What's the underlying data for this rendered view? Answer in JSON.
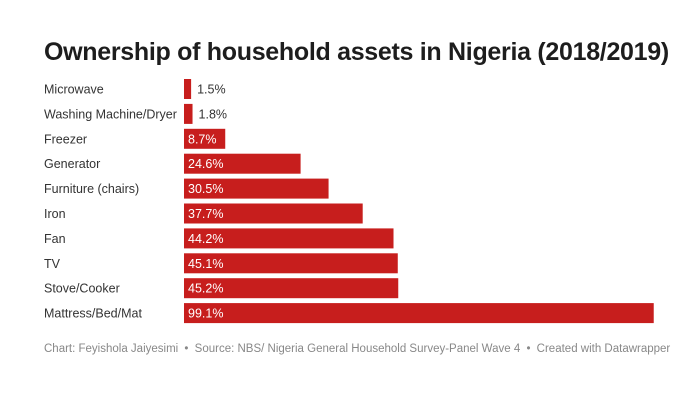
{
  "chart_data": {
    "type": "bar",
    "orientation": "horizontal",
    "title": "Ownership of household assets in Nigeria (2018/2019)",
    "categories": [
      "Microwave",
      "Washing Machine/Dryer",
      "Freezer",
      "Generator",
      "Furniture (chairs)",
      "Iron",
      "Fan",
      "TV",
      "Stove/Cooker",
      "Mattress/Bed/Mat"
    ],
    "values": [
      1.5,
      1.8,
      8.7,
      24.6,
      30.5,
      37.7,
      44.2,
      45.1,
      45.2,
      99.1
    ],
    "value_labels": [
      "1.5%",
      "1.8%",
      "8.7%",
      "24.6%",
      "30.5%",
      "37.7%",
      "44.2%",
      "45.1%",
      "45.2%",
      "99.1%"
    ],
    "unit": "%",
    "xlim": [
      0,
      100
    ],
    "bar_color": "#c71e1d",
    "xlabel": "",
    "ylabel": "",
    "grid": false
  },
  "footer": {
    "chart_credit": "Chart: Feyishola Jaiyesimi",
    "separator": "•",
    "source": "Source: NBS/ Nigeria General Household Survey-Panel Wave 4",
    "created_with": "Created with Datawrapper"
  }
}
